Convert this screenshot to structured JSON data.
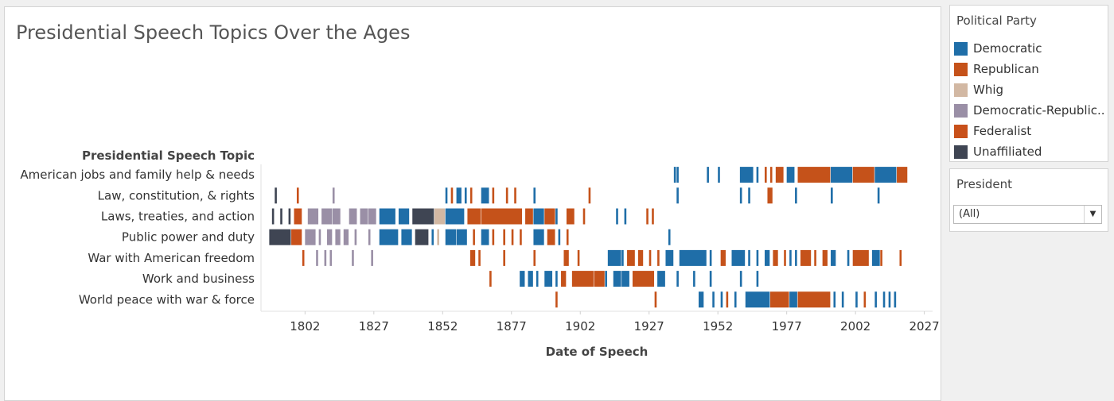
{
  "title": "Presidential Speech Topics Over the Ages",
  "legend": {
    "title": "Political Party",
    "items": [
      {
        "label": "Democratic",
        "color": "#1f6ea8"
      },
      {
        "label": "Republican",
        "color": "#c5521a"
      },
      {
        "label": "Whig",
        "color": "#d2b8a3"
      },
      {
        "label": "Democratic-Republic..",
        "color": "#9a8fa6"
      },
      {
        "label": "Federalist",
        "color": "#c8501a"
      },
      {
        "label": "Unaffiliated",
        "color": "#3f4553"
      }
    ]
  },
  "filter": {
    "title": "President",
    "selected": "(All)"
  },
  "chart_data": {
    "type": "gantt",
    "title": "Presidential Speech Topics Over the Ages",
    "xlabel": "Date of Speech",
    "row_header": "Presidential Speech Topic",
    "xlim": [
      1786,
      2030
    ],
    "x_ticks": [
      1802,
      1827,
      1852,
      1877,
      1902,
      1927,
      1952,
      1977,
      2002,
      2027
    ],
    "party_colors": {
      "Democratic": "#1f6ea8",
      "Republican": "#c5521a",
      "Whig": "#d2b8a3",
      "Democratic-Republican": "#9a8fa6",
      "Federalist": "#c8501a",
      "Unaffiliated": "#3f4553"
    },
    "topics": [
      {
        "label": "American jobs and family help & needs",
        "speeches": [
          {
            "year": 1936,
            "party": "Democratic"
          },
          {
            "year": 1937,
            "party": "Democratic"
          },
          {
            "year": 1948,
            "party": "Democratic"
          },
          {
            "year": 1952,
            "party": "Democratic"
          },
          {
            "year": 1960,
            "span": 5,
            "party": "Democratic"
          },
          {
            "year": 1966,
            "party": "Democratic"
          },
          {
            "year": 1969,
            "party": "Republican"
          },
          {
            "year": 1971,
            "party": "Republican"
          },
          {
            "year": 1973,
            "span": 3,
            "party": "Republican"
          },
          {
            "year": 1977,
            "span": 3,
            "party": "Democratic"
          },
          {
            "year": 1981,
            "span": 12,
            "party": "Republican"
          },
          {
            "year": 1993,
            "span": 8,
            "party": "Democratic"
          },
          {
            "year": 2001,
            "span": 8,
            "party": "Republican"
          },
          {
            "year": 2009,
            "span": 8,
            "party": "Democratic"
          },
          {
            "year": 2017,
            "span": 4,
            "party": "Republican"
          }
        ]
      },
      {
        "label": "Law, constitution, & rights",
        "speeches": [
          {
            "year": 1791,
            "party": "Unaffiliated"
          },
          {
            "year": 1799,
            "party": "Federalist"
          },
          {
            "year": 1812,
            "party": "Democratic-Republican"
          },
          {
            "year": 1853,
            "party": "Democratic"
          },
          {
            "year": 1855,
            "party": "Republican"
          },
          {
            "year": 1857,
            "span": 2,
            "party": "Democratic"
          },
          {
            "year": 1860,
            "party": "Democratic"
          },
          {
            "year": 1862,
            "party": "Republican"
          },
          {
            "year": 1866,
            "span": 3,
            "party": "Democratic"
          },
          {
            "year": 1870,
            "party": "Republican"
          },
          {
            "year": 1875,
            "party": "Republican"
          },
          {
            "year": 1878,
            "party": "Republican"
          },
          {
            "year": 1885,
            "party": "Democratic"
          },
          {
            "year": 1905,
            "party": "Republican"
          },
          {
            "year": 1937,
            "party": "Democratic"
          },
          {
            "year": 1960,
            "party": "Democratic"
          },
          {
            "year": 1963,
            "party": "Democratic"
          },
          {
            "year": 1970,
            "span": 2,
            "party": "Republican"
          },
          {
            "year": 1980,
            "party": "Democratic"
          },
          {
            "year": 1993,
            "party": "Democratic"
          },
          {
            "year": 2010,
            "party": "Democratic"
          }
        ]
      },
      {
        "label": "Laws, treaties, and action",
        "speeches": [
          {
            "year": 1790,
            "party": "Unaffiliated"
          },
          {
            "year": 1793,
            "party": "Unaffiliated"
          },
          {
            "year": 1796,
            "party": "Unaffiliated"
          },
          {
            "year": 1798,
            "span": 3,
            "party": "Federalist"
          },
          {
            "year": 1803,
            "span": 4,
            "party": "Democratic-Republican"
          },
          {
            "year": 1808,
            "span": 4,
            "party": "Democratic-Republican"
          },
          {
            "year": 1812,
            "span": 3,
            "party": "Democratic-Republican"
          },
          {
            "year": 1818,
            "span": 3,
            "party": "Democratic-Republican"
          },
          {
            "year": 1822,
            "span": 3,
            "party": "Democratic-Republican"
          },
          {
            "year": 1825,
            "span": 3,
            "party": "Democratic-Republican"
          },
          {
            "year": 1829,
            "span": 6,
            "party": "Democratic"
          },
          {
            "year": 1836,
            "span": 4,
            "party": "Democratic"
          },
          {
            "year": 1841,
            "span": 8,
            "party": "Unaffiliated"
          },
          {
            "year": 1849,
            "span": 4,
            "party": "Whig"
          },
          {
            "year": 1853,
            "span": 7,
            "party": "Democratic"
          },
          {
            "year": 1861,
            "span": 5,
            "party": "Republican"
          },
          {
            "year": 1866,
            "span": 4,
            "party": "Republican"
          },
          {
            "year": 1869,
            "span": 12,
            "party": "Republican"
          },
          {
            "year": 1882,
            "span": 3,
            "party": "Republican"
          },
          {
            "year": 1885,
            "span": 4,
            "party": "Democratic"
          },
          {
            "year": 1889,
            "span": 4,
            "party": "Republican"
          },
          {
            "year": 1893,
            "party": "Democratic"
          },
          {
            "year": 1897,
            "span": 3,
            "party": "Republican"
          },
          {
            "year": 1903,
            "party": "Republican"
          },
          {
            "year": 1915,
            "party": "Democratic"
          },
          {
            "year": 1918,
            "party": "Democratic"
          },
          {
            "year": 1926,
            "party": "Republican"
          },
          {
            "year": 1928,
            "party": "Republican"
          }
        ]
      },
      {
        "label": "Public power and duty",
        "speeches": [
          {
            "year": 1789,
            "span": 8,
            "party": "Unaffiliated"
          },
          {
            "year": 1797,
            "span": 4,
            "party": "Federalist"
          },
          {
            "year": 1802,
            "span": 4,
            "party": "Democratic-Republican"
          },
          {
            "year": 1807,
            "party": "Democratic-Republican"
          },
          {
            "year": 1810,
            "span": 2,
            "party": "Democratic-Republican"
          },
          {
            "year": 1813,
            "span": 2,
            "party": "Democratic-Republican"
          },
          {
            "year": 1816,
            "span": 2,
            "party": "Democratic-Republican"
          },
          {
            "year": 1820,
            "party": "Democratic-Republican"
          },
          {
            "year": 1825,
            "party": "Democratic-Republican"
          },
          {
            "year": 1829,
            "span": 7,
            "party": "Democratic"
          },
          {
            "year": 1837,
            "span": 4,
            "party": "Democratic"
          },
          {
            "year": 1842,
            "span": 5,
            "party": "Unaffiliated"
          },
          {
            "year": 1848,
            "party": "Democratic"
          },
          {
            "year": 1850,
            "party": "Whig"
          },
          {
            "year": 1853,
            "span": 4,
            "party": "Democratic"
          },
          {
            "year": 1857,
            "span": 4,
            "party": "Democratic"
          },
          {
            "year": 1863,
            "party": "Republican"
          },
          {
            "year": 1866,
            "span": 3,
            "party": "Democratic"
          },
          {
            "year": 1870,
            "party": "Republican"
          },
          {
            "year": 1874,
            "party": "Republican"
          },
          {
            "year": 1877,
            "party": "Republican"
          },
          {
            "year": 1880,
            "party": "Republican"
          },
          {
            "year": 1885,
            "span": 4,
            "party": "Democratic"
          },
          {
            "year": 1890,
            "span": 3,
            "party": "Republican"
          },
          {
            "year": 1894,
            "party": "Democratic"
          },
          {
            "year": 1897,
            "party": "Republican"
          },
          {
            "year": 1934,
            "party": "Democratic"
          }
        ]
      },
      {
        "label": "War with American freedom",
        "speeches": [
          {
            "year": 1801,
            "party": "Federalist"
          },
          {
            "year": 1806,
            "party": "Democratic-Republican"
          },
          {
            "year": 1809,
            "party": "Democratic-Republican"
          },
          {
            "year": 1811,
            "party": "Democratic-Republican"
          },
          {
            "year": 1819,
            "party": "Democratic-Republican"
          },
          {
            "year": 1826,
            "party": "Democratic-Republican"
          },
          {
            "year": 1862,
            "span": 2,
            "party": "Republican"
          },
          {
            "year": 1865,
            "party": "Republican"
          },
          {
            "year": 1874,
            "party": "Republican"
          },
          {
            "year": 1885,
            "party": "Republican"
          },
          {
            "year": 1896,
            "span": 2,
            "party": "Republican"
          },
          {
            "year": 1901,
            "party": "Republican"
          },
          {
            "year": 1912,
            "span": 5,
            "party": "Democratic"
          },
          {
            "year": 1917,
            "party": "Democratic"
          },
          {
            "year": 1919,
            "span": 3,
            "party": "Republican"
          },
          {
            "year": 1923,
            "span": 2,
            "party": "Republican"
          },
          {
            "year": 1927,
            "party": "Republican"
          },
          {
            "year": 1930,
            "party": "Republican"
          },
          {
            "year": 1933,
            "span": 3,
            "party": "Democratic"
          },
          {
            "year": 1938,
            "span": 10,
            "party": "Democratic"
          },
          {
            "year": 1949,
            "party": "Democratic"
          },
          {
            "year": 1953,
            "span": 2,
            "party": "Republican"
          },
          {
            "year": 1957,
            "span": 5,
            "party": "Democratic"
          },
          {
            "year": 1963,
            "party": "Democratic"
          },
          {
            "year": 1966,
            "party": "Democratic"
          },
          {
            "year": 1969,
            "span": 2,
            "party": "Democratic"
          },
          {
            "year": 1972,
            "span": 2,
            "party": "Republican"
          },
          {
            "year": 1976,
            "party": "Republican"
          },
          {
            "year": 1978,
            "party": "Democratic"
          },
          {
            "year": 1980,
            "party": "Democratic"
          },
          {
            "year": 1982,
            "span": 4,
            "party": "Republican"
          },
          {
            "year": 1987,
            "party": "Republican"
          },
          {
            "year": 1990,
            "span": 2,
            "party": "Republican"
          },
          {
            "year": 1993,
            "span": 2,
            "party": "Democratic"
          },
          {
            "year": 1999,
            "party": "Democratic"
          },
          {
            "year": 2001,
            "span": 6,
            "party": "Republican"
          },
          {
            "year": 2008,
            "span": 3,
            "party": "Democratic"
          },
          {
            "year": 2011,
            "party": "Republican"
          },
          {
            "year": 2018,
            "party": "Republican"
          }
        ]
      },
      {
        "label": "Work and business",
        "speeches": [
          {
            "year": 1869,
            "party": "Republican"
          },
          {
            "year": 1880,
            "span": 2,
            "party": "Democratic"
          },
          {
            "year": 1883,
            "span": 2,
            "party": "Democratic"
          },
          {
            "year": 1886,
            "party": "Democratic"
          },
          {
            "year": 1889,
            "span": 3,
            "party": "Democratic"
          },
          {
            "year": 1893,
            "party": "Democratic"
          },
          {
            "year": 1895,
            "span": 2,
            "party": "Republican"
          },
          {
            "year": 1899,
            "span": 8,
            "party": "Republican"
          },
          {
            "year": 1907,
            "span": 4,
            "party": "Republican"
          },
          {
            "year": 1911,
            "party": "Democratic"
          },
          {
            "year": 1914,
            "span": 3,
            "party": "Democratic"
          },
          {
            "year": 1917,
            "span": 3,
            "party": "Democratic"
          },
          {
            "year": 1921,
            "span": 8,
            "party": "Republican"
          },
          {
            "year": 1930,
            "span": 3,
            "party": "Democratic"
          },
          {
            "year": 1937,
            "party": "Democratic"
          },
          {
            "year": 1943,
            "party": "Democratic"
          },
          {
            "year": 1949,
            "party": "Democratic"
          },
          {
            "year": 1960,
            "party": "Democratic"
          },
          {
            "year": 1966,
            "party": "Democratic"
          }
        ]
      },
      {
        "label": "World peace with war & force",
        "speeches": [
          {
            "year": 1893,
            "party": "Republican"
          },
          {
            "year": 1929,
            "party": "Republican"
          },
          {
            "year": 1945,
            "span": 2,
            "party": "Democratic"
          },
          {
            "year": 1950,
            "party": "Democratic"
          },
          {
            "year": 1953,
            "party": "Democratic"
          },
          {
            "year": 1955,
            "party": "Republican"
          },
          {
            "year": 1958,
            "party": "Democratic"
          },
          {
            "year": 1962,
            "span": 9,
            "party": "Democratic"
          },
          {
            "year": 1971,
            "span": 7,
            "party": "Republican"
          },
          {
            "year": 1978,
            "span": 3,
            "party": "Democratic"
          },
          {
            "year": 1981,
            "span": 12,
            "party": "Republican"
          },
          {
            "year": 1994,
            "party": "Democratic"
          },
          {
            "year": 1997,
            "party": "Democratic"
          },
          {
            "year": 2002,
            "party": "Democratic"
          },
          {
            "year": 2005,
            "party": "Republican"
          },
          {
            "year": 2009,
            "party": "Democratic"
          },
          {
            "year": 2012,
            "party": "Democratic"
          },
          {
            "year": 2014,
            "party": "Democratic"
          },
          {
            "year": 2016,
            "party": "Democratic"
          }
        ]
      }
    ]
  }
}
